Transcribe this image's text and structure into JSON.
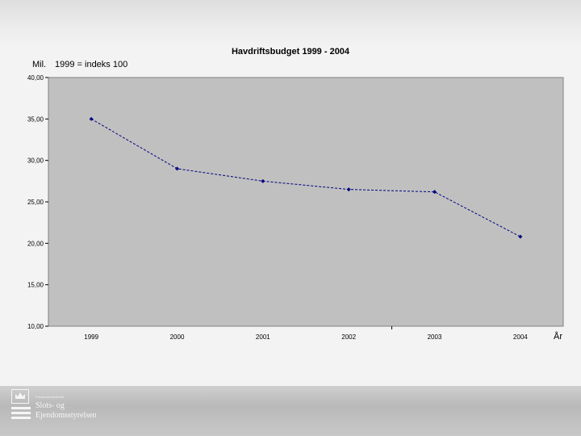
{
  "chart_data": {
    "type": "line",
    "title": "Havdriftsbudget 1999 - 2004",
    "unit_label": "Mil.",
    "index_label": "1999 = indeks 100",
    "xlabel": "År",
    "categories": [
      "1999",
      "2000",
      "2001",
      "2002",
      "2003",
      "2004"
    ],
    "series": [
      {
        "name": "Havdriftsbudget",
        "values": [
          35.0,
          29.0,
          27.5,
          26.5,
          26.2,
          20.8
        ]
      }
    ],
    "ylim": [
      10,
      40
    ],
    "yticks": [
      "40,00",
      "35,00",
      "30,00",
      "25,00",
      "20,00",
      "15,00",
      "10,00"
    ],
    "colors": {
      "plot_bg": "#c0c0c0",
      "line": "#000080"
    }
  },
  "footer": {
    "logo_small": "Finansministeriet",
    "logo_line1": "Slots- og",
    "logo_line2": "Ejendomsstyrelsen"
  }
}
